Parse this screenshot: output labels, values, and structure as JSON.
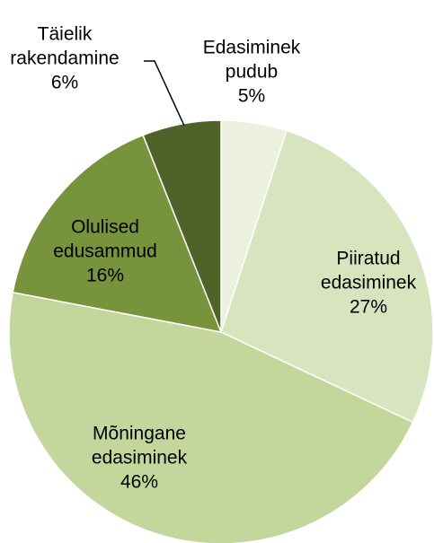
{
  "chart_data": {
    "type": "pie",
    "categories": [
      "Edasiminek pudub",
      "Piiratud edasiminek",
      "Mõningane edasiminek",
      "Olulised edusammud",
      "Täielik rakendamine"
    ],
    "values": [
      5,
      27,
      46,
      16,
      6
    ],
    "value_labels": [
      "5%",
      "27%",
      "46%",
      "16%",
      "6%"
    ],
    "colors": [
      "#ebf1de",
      "#d7e4bd",
      "#c3d69b",
      "#77933c",
      "#4f6228"
    ]
  }
}
